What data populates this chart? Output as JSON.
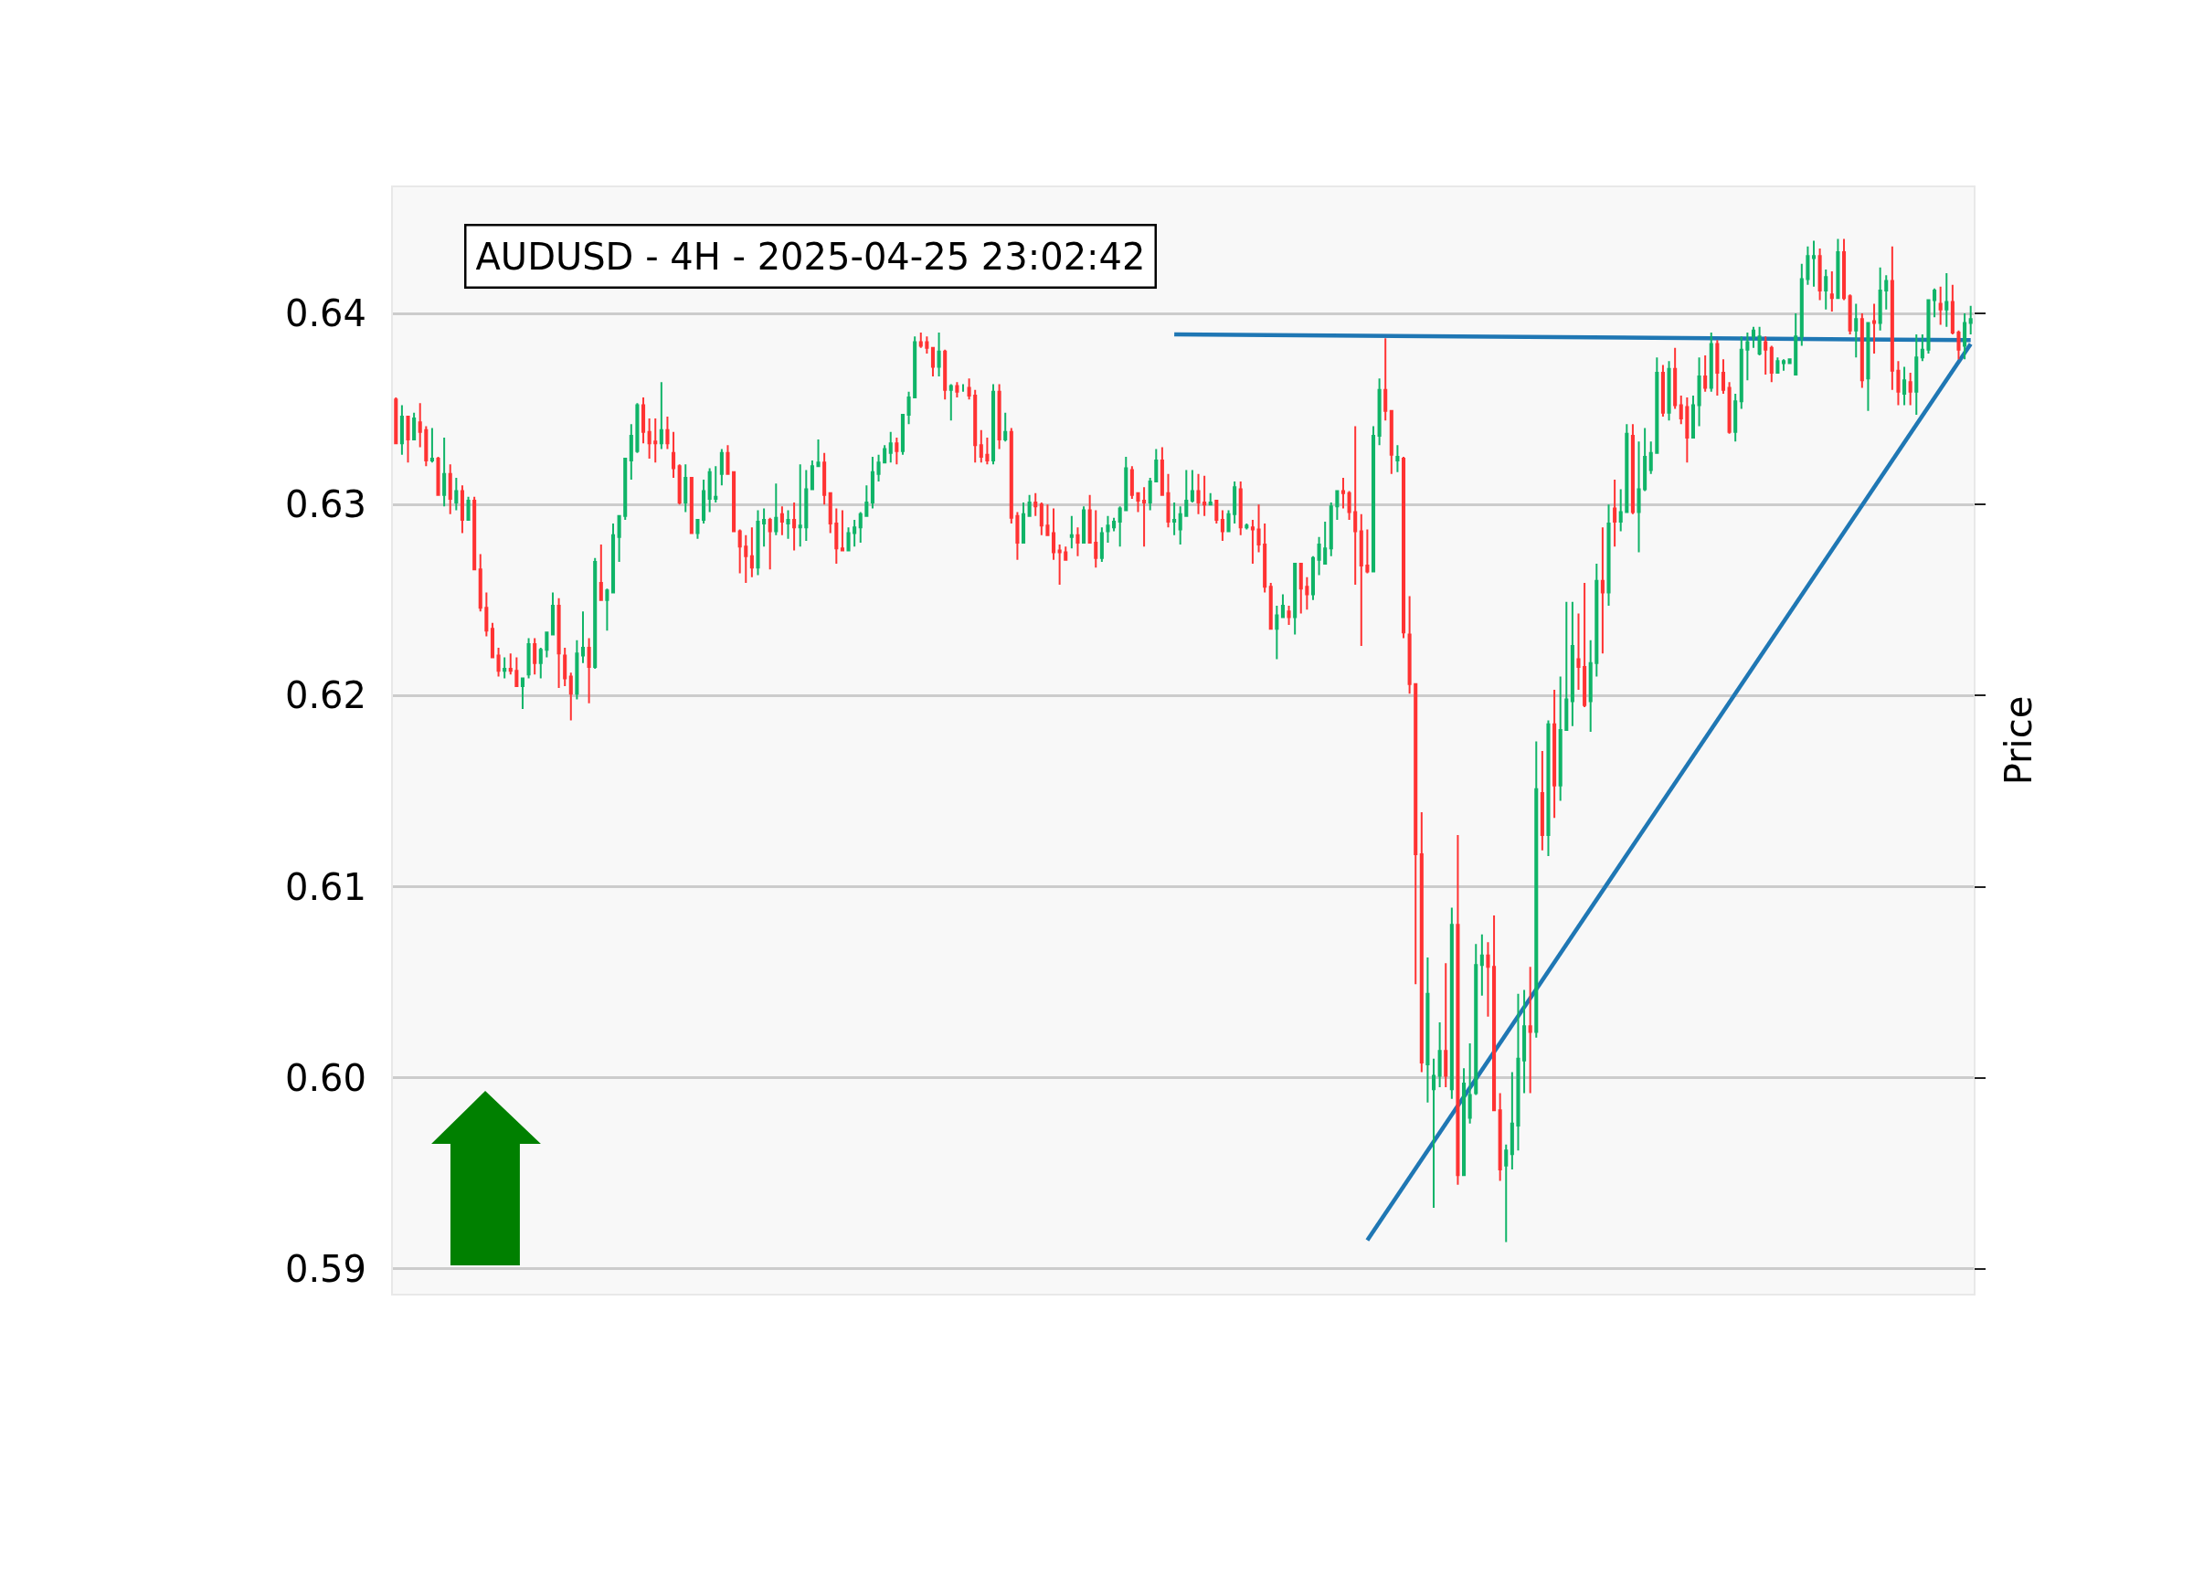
{
  "chart_data": {
    "type": "candlestick",
    "title": "AUDUSD - 4H - 2025-04-25 23:02:42",
    "ylabel": "Price",
    "categories": [
      null,
      null,
      null,
      null,
      null,
      null,
      null,
      null,
      null,
      null,
      null,
      null,
      null,
      null,
      null,
      null,
      null,
      null,
      null,
      null,
      null,
      null,
      null,
      null,
      null,
      null,
      null,
      null,
      null,
      null,
      null,
      null,
      null,
      null,
      null,
      null,
      null,
      null,
      null,
      null,
      null,
      null,
      null,
      null,
      null,
      null,
      null,
      null,
      null,
      null,
      null,
      null,
      null,
      null,
      null,
      null,
      null,
      null,
      null,
      null,
      null,
      null,
      null,
      null,
      null,
      null,
      null,
      null,
      null,
      null,
      null,
      null,
      null,
      null,
      null,
      null,
      null,
      null,
      null,
      null,
      null,
      null,
      null,
      null,
      null,
      null,
      null,
      null,
      null,
      null,
      null,
      null,
      null,
      null,
      null,
      null,
      null,
      null,
      null,
      null,
      null,
      null,
      null,
      null,
      null,
      null,
      null,
      null,
      null,
      null,
      null,
      null,
      null,
      null,
      null,
      null,
      null,
      null,
      null,
      null,
      null,
      null,
      null,
      null,
      null,
      null,
      null,
      null,
      null,
      null,
      null,
      null,
      null,
      null,
      null,
      null,
      null,
      null,
      null,
      null,
      null,
      null,
      null,
      null,
      null,
      null,
      null,
      null,
      null,
      null,
      null,
      null,
      null,
      null,
      null,
      null,
      null,
      null,
      null,
      null,
      null,
      null,
      null,
      null,
      null,
      null,
      null,
      null,
      null,
      null,
      null,
      null,
      null,
      null,
      null,
      null,
      null,
      null,
      null,
      null,
      null,
      null,
      null,
      null,
      null,
      null,
      null,
      null,
      null,
      null,
      null,
      null,
      null,
      null,
      null,
      null,
      null,
      null,
      null,
      null,
      null,
      null,
      null,
      null,
      null,
      null,
      null,
      null,
      null,
      null,
      null,
      null,
      null,
      null,
      null,
      null,
      null,
      null,
      null,
      null,
      null,
      null,
      null,
      null,
      null,
      null,
      null,
      null,
      null,
      null,
      null,
      null,
      null,
      null,
      null,
      null,
      null,
      null,
      null,
      null,
      null,
      null,
      null,
      null,
      null,
      null,
      null,
      null,
      null,
      null,
      null,
      null,
      null,
      null,
      null,
      null,
      null,
      null,
      null,
      null,
      null,
      null
    ],
    "ohlc": [
      [
        0.6355,
        0.6356,
        0.6332,
        0.6332
      ],
      [
        0.6332,
        0.6352,
        0.6326,
        0.6346
      ],
      [
        0.6346,
        0.6346,
        0.6322,
        0.6334
      ],
      [
        0.6334,
        0.6348,
        0.6334,
        0.6345
      ],
      [
        0.6343,
        0.6353,
        0.633,
        0.6338
      ],
      [
        0.6339,
        0.6341,
        0.632,
        0.6323
      ],
      [
        0.6323,
        0.634,
        0.6322,
        0.6324
      ],
      [
        0.6324,
        0.6325,
        0.6305,
        0.6305
      ],
      [
        0.6305,
        0.6335,
        0.6299,
        0.6316
      ],
      [
        0.6316,
        0.6321,
        0.6295,
        0.6303
      ],
      [
        0.6301,
        0.6314,
        0.6297,
        0.6307
      ],
      [
        0.6307,
        0.631,
        0.6285,
        0.6292
      ],
      [
        0.6292,
        0.6304,
        0.6292,
        0.6302
      ],
      [
        0.6302,
        0.6304,
        0.6266,
        0.6266
      ],
      [
        0.6266,
        0.6274,
        0.6244,
        0.6246
      ],
      [
        0.6246,
        0.6254,
        0.6231,
        0.6234
      ],
      [
        0.6235,
        0.6238,
        0.622,
        0.622
      ],
      [
        0.6221,
        0.6225,
        0.621,
        0.6213
      ],
      [
        0.6213,
        0.622,
        0.6209,
        0.6214
      ],
      [
        0.6214,
        0.6222,
        0.6211,
        0.6213
      ],
      [
        0.6213,
        0.622,
        0.6205,
        0.6205
      ],
      [
        0.6205,
        0.6209,
        0.6193,
        0.6209
      ],
      [
        0.6211,
        0.623,
        0.6209,
        0.6227
      ],
      [
        0.6227,
        0.623,
        0.6211,
        0.6217
      ],
      [
        0.6217,
        0.6225,
        0.6209,
        0.6224
      ],
      [
        0.6224,
        0.6233,
        0.622,
        0.6233
      ],
      [
        0.6232,
        0.6254,
        0.6232,
        0.6247
      ],
      [
        0.6247,
        0.6251,
        0.6204,
        0.6222
      ],
      [
        0.6221,
        0.6225,
        0.6205,
        0.6209
      ],
      [
        0.621,
        0.6212,
        0.6187,
        0.6201
      ],
      [
        0.6201,
        0.6229,
        0.6198,
        0.6222
      ],
      [
        0.6221,
        0.6244,
        0.6217,
        0.6225
      ],
      [
        0.6225,
        0.623,
        0.6196,
        0.6215
      ],
      [
        0.6215,
        0.6272,
        0.6214,
        0.627
      ],
      [
        0.6259,
        0.6279,
        0.625,
        0.625
      ],
      [
        0.625,
        0.6256,
        0.6234,
        0.6255
      ],
      [
        0.6254,
        0.629,
        0.6254,
        0.6284
      ],
      [
        0.6283,
        0.6294,
        0.627,
        0.6294
      ],
      [
        0.6294,
        0.6324,
        0.6292,
        0.6324
      ],
      [
        0.6323,
        0.6342,
        0.6313,
        0.6336
      ],
      [
        0.6328,
        0.6353,
        0.6327,
        0.6352
      ],
      [
        0.6352,
        0.6356,
        0.6332,
        0.6338
      ],
      [
        0.6338,
        0.6345,
        0.6324,
        0.6332
      ],
      [
        0.6333,
        0.6345,
        0.6322,
        0.6332
      ],
      [
        0.6332,
        0.6364,
        0.6329,
        0.6339
      ],
      [
        0.6339,
        0.6346,
        0.6329,
        0.6332
      ],
      [
        0.6327,
        0.6338,
        0.6314,
        0.6319
      ],
      [
        0.632,
        0.6321,
        0.63,
        0.6301
      ],
      [
        0.6301,
        0.6321,
        0.6296,
        0.6314
      ],
      [
        0.6314,
        0.6314,
        0.6285,
        0.6285
      ],
      [
        0.6285,
        0.6292,
        0.6282,
        0.6292
      ],
      [
        0.6292,
        0.6313,
        0.629,
        0.6307
      ],
      [
        0.6303,
        0.6319,
        0.6296,
        0.6317
      ],
      [
        0.6303,
        0.632,
        0.6301,
        0.6304
      ],
      [
        0.6316,
        0.6329,
        0.631,
        0.6327
      ],
      [
        0.6327,
        0.6331,
        0.6316,
        0.6316
      ],
      [
        0.6317,
        0.6317,
        0.6286,
        0.6286
      ],
      [
        0.6286,
        0.6287,
        0.6264,
        0.6278
      ],
      [
        0.6278,
        0.6284,
        0.6259,
        0.6273
      ],
      [
        0.6273,
        0.6288,
        0.6262,
        0.6267
      ],
      [
        0.6267,
        0.6297,
        0.6263,
        0.6291
      ],
      [
        0.629,
        0.6298,
        0.6278,
        0.6292
      ],
      [
        0.6292,
        0.6293,
        0.6266,
        0.6286
      ],
      [
        0.6286,
        0.6311,
        0.6284,
        0.6293
      ],
      [
        0.6295,
        0.6299,
        0.6284,
        0.6291
      ],
      [
        0.629,
        0.6297,
        0.6282,
        0.6292
      ],
      [
        0.6292,
        0.6301,
        0.6276,
        0.6288
      ],
      [
        0.6288,
        0.6321,
        0.6278,
        0.6289
      ],
      [
        0.6288,
        0.6318,
        0.6281,
        0.6308
      ],
      [
        0.6308,
        0.6323,
        0.6308,
        0.632
      ],
      [
        0.632,
        0.6334,
        0.632,
        0.6322
      ],
      [
        0.6322,
        0.6327,
        0.63,
        0.6305
      ],
      [
        0.6306,
        0.6306,
        0.6285,
        0.629
      ],
      [
        0.629,
        0.6298,
        0.6269,
        0.6277
      ],
      [
        0.6277,
        0.6297,
        0.6276,
        0.6276
      ],
      [
        0.6276,
        0.6288,
        0.6276,
        0.6285
      ],
      [
        0.6285,
        0.6292,
        0.6278,
        0.6288
      ],
      [
        0.6288,
        0.6296,
        0.628,
        0.6295
      ],
      [
        0.6294,
        0.631,
        0.6294,
        0.6301
      ],
      [
        0.6301,
        0.6325,
        0.6298,
        0.6317
      ],
      [
        0.6316,
        0.6326,
        0.6312,
        0.6322
      ],
      [
        0.6322,
        0.6331,
        0.6322,
        0.6329
      ],
      [
        0.6327,
        0.6338,
        0.6322,
        0.6332
      ],
      [
        0.6332,
        0.6335,
        0.6321,
        0.6328
      ],
      [
        0.6328,
        0.6347,
        0.6326,
        0.6347
      ],
      [
        0.6347,
        0.6359,
        0.6342,
        0.6356
      ],
      [
        0.6356,
        0.6388,
        0.6356,
        0.6385
      ],
      [
        0.6385,
        0.639,
        0.6382,
        0.6383
      ],
      [
        0.6385,
        0.6388,
        0.6379,
        0.6382
      ],
      [
        0.6382,
        0.6382,
        0.6367,
        0.6372
      ],
      [
        0.6372,
        0.639,
        0.6367,
        0.638
      ],
      [
        0.638,
        0.6381,
        0.6355,
        0.636
      ],
      [
        0.636,
        0.6363,
        0.6344,
        0.6362
      ],
      [
        0.6362,
        0.6364,
        0.6356,
        0.6359
      ],
      [
        0.636,
        0.6363,
        0.6359,
        0.636
      ],
      [
        0.6361,
        0.6366,
        0.6355,
        0.6357
      ],
      [
        0.6357,
        0.636,
        0.6322,
        0.6331
      ],
      [
        0.6331,
        0.6339,
        0.6322,
        0.6325
      ],
      [
        0.6326,
        0.6335,
        0.6321,
        0.6323
      ],
      [
        0.6323,
        0.6363,
        0.6321,
        0.6359
      ],
      [
        0.6359,
        0.6363,
        0.6329,
        0.6334
      ],
      [
        0.6334,
        0.6348,
        0.6333,
        0.6338
      ],
      [
        0.6338,
        0.634,
        0.629,
        0.6293
      ],
      [
        0.6294,
        0.6296,
        0.6271,
        0.628
      ],
      [
        0.628,
        0.6301,
        0.628,
        0.6295
      ],
      [
        0.6294,
        0.6305,
        0.6294,
        0.6301
      ],
      [
        0.6301,
        0.6306,
        0.6294,
        0.6299
      ],
      [
        0.63,
        0.6301,
        0.6284,
        0.6289
      ],
      [
        0.6289,
        0.63,
        0.6284,
        0.6284
      ],
      [
        0.6285,
        0.6298,
        0.6271,
        0.6275
      ],
      [
        0.6276,
        0.6279,
        0.6258,
        0.6275
      ],
      [
        0.6275,
        0.6278,
        0.6271,
        0.6271
      ],
      [
        0.6283,
        0.6294,
        0.6277,
        0.6284
      ],
      [
        0.6284,
        0.6288,
        0.6273,
        0.628
      ],
      [
        0.628,
        0.6299,
        0.628,
        0.6297
      ],
      [
        0.6297,
        0.6305,
        0.628,
        0.628
      ],
      [
        0.628,
        0.6297,
        0.6267,
        0.6272
      ],
      [
        0.6272,
        0.6288,
        0.627,
        0.6285
      ],
      [
        0.6286,
        0.6294,
        0.628,
        0.6289
      ],
      [
        0.6288,
        0.6293,
        0.6286,
        0.6291
      ],
      [
        0.6291,
        0.6299,
        0.6278,
        0.6298
      ],
      [
        0.6297,
        0.6325,
        0.6297,
        0.6319
      ],
      [
        0.6318,
        0.632,
        0.6303,
        0.6305
      ],
      [
        0.6306,
        0.6306,
        0.6296,
        0.6302
      ],
      [
        0.6302,
        0.6309,
        0.6278,
        0.6301
      ],
      [
        0.6301,
        0.6314,
        0.6297,
        0.6312
      ],
      [
        0.6312,
        0.6329,
        0.6312,
        0.6323
      ],
      [
        0.6323,
        0.633,
        0.6305,
        0.6305
      ],
      [
        0.6306,
        0.6316,
        0.6288,
        0.6291
      ],
      [
        0.6291,
        0.6301,
        0.6284,
        0.6292
      ],
      [
        0.6287,
        0.6299,
        0.6279,
        0.6295
      ],
      [
        0.6294,
        0.6318,
        0.6294,
        0.6302
      ],
      [
        0.6302,
        0.6318,
        0.6301,
        0.6307
      ],
      [
        0.6307,
        0.6316,
        0.6295,
        0.6301
      ],
      [
        0.6301,
        0.6315,
        0.6294,
        0.63
      ],
      [
        0.63,
        0.6306,
        0.63,
        0.6301
      ],
      [
        0.6302,
        0.6302,
        0.629,
        0.6292
      ],
      [
        0.6292,
        0.6297,
        0.6281,
        0.6286
      ],
      [
        0.6286,
        0.6297,
        0.6286,
        0.6295
      ],
      [
        0.6295,
        0.6312,
        0.629,
        0.6309
      ],
      [
        0.6308,
        0.6312,
        0.6284,
        0.6288
      ],
      [
        0.6288,
        0.629,
        0.6287,
        0.6289
      ],
      [
        0.6288,
        0.6292,
        0.6269,
        0.6287
      ],
      [
        0.6287,
        0.63,
        0.6275,
        0.6279
      ],
      [
        0.6279,
        0.629,
        0.6254,
        0.6257
      ],
      [
        0.6257,
        0.6259,
        0.6235,
        0.6235
      ],
      [
        0.6235,
        0.6247,
        0.6219,
        0.6242
      ],
      [
        0.6241,
        0.6253,
        0.6241,
        0.6247
      ],
      [
        0.6244,
        0.6247,
        0.6237,
        0.6241
      ],
      [
        0.6241,
        0.6269,
        0.6232,
        0.6269
      ],
      [
        0.6269,
        0.6269,
        0.6243,
        0.6256
      ],
      [
        0.6257,
        0.6262,
        0.6245,
        0.6253
      ],
      [
        0.6253,
        0.6273,
        0.625,
        0.6272
      ],
      [
        0.6271,
        0.6283,
        0.6263,
        0.6279
      ],
      [
        0.6269,
        0.6291,
        0.6269,
        0.6277
      ],
      [
        0.6277,
        0.6301,
        0.6273,
        0.6299
      ],
      [
        0.6299,
        0.6307,
        0.6292,
        0.6307
      ],
      [
        0.6307,
        0.6314,
        0.6298,
        0.6306
      ],
      [
        0.6306,
        0.6307,
        0.6292,
        0.6296
      ],
      [
        0.6296,
        0.6341,
        0.6258,
        0.6286
      ],
      [
        0.6286,
        0.6295,
        0.6226,
        0.6268
      ],
      [
        0.6268,
        0.6287,
        0.6264,
        0.6265
      ],
      [
        0.6265,
        0.6341,
        0.6265,
        0.6336
      ],
      [
        0.6336,
        0.6366,
        0.6331,
        0.636
      ],
      [
        0.636,
        0.6387,
        0.6344,
        0.6349
      ],
      [
        0.6349,
        0.6349,
        0.6316,
        0.6326
      ],
      [
        0.6323,
        0.6331,
        0.6317,
        0.6325
      ],
      [
        0.6324,
        0.6325,
        0.623,
        0.6233
      ],
      [
        0.6232,
        0.6252,
        0.6201,
        0.6206
      ],
      [
        0.6206,
        0.6206,
        0.6049,
        0.6117
      ],
      [
        0.6117,
        0.6139,
        0.6003,
        0.6008
      ],
      [
        0.6007,
        0.6063,
        0.5987,
        0.6044
      ],
      [
        0.5994,
        0.601,
        0.5932,
        0.6001
      ],
      [
        0.6001,
        0.6029,
        0.5995,
        0.6014
      ],
      [
        0.6014,
        0.606,
        0.5995,
        0.6001
      ],
      [
        0.5994,
        0.6089,
        0.5989,
        0.608
      ],
      [
        0.608,
        0.6127,
        0.5944,
        0.5949
      ],
      [
        0.5949,
        0.6005,
        0.5949,
        0.5997
      ],
      [
        0.5979,
        0.6018,
        0.5976,
        0.5991
      ],
      [
        0.5992,
        0.607,
        0.5991,
        0.6059
      ],
      [
        0.6059,
        0.6075,
        0.6043,
        0.6064
      ],
      [
        0.6064,
        0.6071,
        0.6032,
        0.6058
      ],
      [
        0.6058,
        0.6085,
        0.5983,
        0.5983
      ],
      [
        0.5983,
        0.5992,
        0.5946,
        0.5952
      ],
      [
        0.5954,
        0.5965,
        0.5914,
        0.5962
      ],
      [
        0.596,
        0.6003,
        0.5952,
        0.5976
      ],
      [
        0.5975,
        0.6044,
        0.5962,
        0.601
      ],
      [
        0.6009,
        0.6046,
        0.5992,
        0.6027
      ],
      [
        0.6027,
        0.6058,
        0.5992,
        0.6024
      ],
      [
        0.6024,
        0.6176,
        0.6021,
        0.6151
      ],
      [
        0.6149,
        0.6171,
        0.6119,
        0.6127
      ],
      [
        0.6127,
        0.6187,
        0.6116,
        0.6185
      ],
      [
        0.6185,
        0.6203,
        0.6136,
        0.6153
      ],
      [
        0.6153,
        0.621,
        0.6145,
        0.6182
      ],
      [
        0.6182,
        0.6249,
        0.6182,
        0.6198
      ],
      [
        0.6197,
        0.6249,
        0.6184,
        0.6226
      ],
      [
        0.6219,
        0.6243,
        0.6203,
        0.6215
      ],
      [
        0.6215,
        0.6259,
        0.6194,
        0.6195
      ],
      [
        0.6197,
        0.6229,
        0.6181,
        0.6217
      ],
      [
        0.6217,
        0.6269,
        0.621,
        0.626
      ],
      [
        0.626,
        0.6288,
        0.6222,
        0.6254
      ],
      [
        0.6254,
        0.63,
        0.6247,
        0.629
      ],
      [
        0.6298,
        0.6313,
        0.6278,
        0.6291
      ],
      [
        0.6291,
        0.6308,
        0.6286,
        0.6296
      ],
      [
        0.6296,
        0.6342,
        0.6296,
        0.6337
      ],
      [
        0.6336,
        0.6342,
        0.6295,
        0.6296
      ],
      [
        0.6296,
        0.6333,
        0.6275,
        0.6308
      ],
      [
        0.6308,
        0.634,
        0.6307,
        0.6325
      ],
      [
        0.6318,
        0.6333,
        0.6316,
        0.6327
      ],
      [
        0.6327,
        0.6377,
        0.6327,
        0.6369
      ],
      [
        0.6369,
        0.6373,
        0.6346,
        0.6348
      ],
      [
        0.6348,
        0.6375,
        0.6344,
        0.6371
      ],
      [
        0.6371,
        0.6382,
        0.635,
        0.6352
      ],
      [
        0.6352,
        0.6357,
        0.6342,
        0.6345
      ],
      [
        0.6351,
        0.6356,
        0.6322,
        0.6335
      ],
      [
        0.6335,
        0.6357,
        0.6335,
        0.6352
      ],
      [
        0.6352,
        0.6377,
        0.6341,
        0.6367
      ],
      [
        0.6367,
        0.6378,
        0.6359,
        0.6361
      ],
      [
        0.6361,
        0.639,
        0.6359,
        0.6384
      ],
      [
        0.6384,
        0.6386,
        0.6357,
        0.6369
      ],
      [
        0.6369,
        0.6376,
        0.6358,
        0.636
      ],
      [
        0.6361,
        0.6364,
        0.6337,
        0.6338
      ],
      [
        0.6338,
        0.6358,
        0.6333,
        0.6354
      ],
      [
        0.6354,
        0.6388,
        0.635,
        0.6381
      ],
      [
        0.6381,
        0.639,
        0.6365,
        0.6385
      ],
      [
        0.6388,
        0.6393,
        0.6382,
        0.6391
      ],
      [
        0.6379,
        0.6393,
        0.6378,
        0.6388
      ],
      [
        0.6385,
        0.6388,
        0.6368,
        0.6381
      ],
      [
        0.6382,
        0.6383,
        0.6364,
        0.6369
      ],
      [
        0.6369,
        0.6377,
        0.6369,
        0.6375
      ],
      [
        0.6374,
        0.6376,
        0.637,
        0.6375
      ],
      [
        0.6374,
        0.6376,
        0.6374,
        0.6376
      ],
      [
        0.6368,
        0.64,
        0.6368,
        0.6388
      ],
      [
        0.6388,
        0.6426,
        0.6383,
        0.6418
      ],
      [
        0.6418,
        0.6435,
        0.6415,
        0.643
      ],
      [
        0.6429,
        0.6438,
        0.6414,
        0.643
      ],
      [
        0.643,
        0.6434,
        0.6407,
        0.6412
      ],
      [
        0.6412,
        0.6423,
        0.6402,
        0.6419
      ],
      [
        0.641,
        0.6422,
        0.6401,
        0.6408
      ],
      [
        0.6408,
        0.6439,
        0.6408,
        0.6432
      ],
      [
        0.6432,
        0.6439,
        0.6407,
        0.6408
      ],
      [
        0.6409,
        0.641,
        0.6389,
        0.6391
      ],
      [
        0.6391,
        0.6405,
        0.6377,
        0.6397
      ],
      [
        0.6397,
        0.64,
        0.6361,
        0.6365
      ],
      [
        0.6366,
        0.6395,
        0.6349,
        0.6395
      ],
      [
        0.6396,
        0.6405,
        0.6379,
        0.6395
      ],
      [
        0.6395,
        0.6424,
        0.6391,
        0.6412
      ],
      [
        0.6412,
        0.642,
        0.6402,
        0.6417
      ],
      [
        0.6417,
        0.6435,
        0.636,
        0.637
      ],
      [
        0.637,
        0.6375,
        0.6352,
        0.6359
      ],
      [
        0.6358,
        0.6372,
        0.6352,
        0.6365
      ],
      [
        0.6364,
        0.6369,
        0.6352,
        0.6359
      ],
      [
        0.6359,
        0.6389,
        0.6347,
        0.6377
      ],
      [
        0.6377,
        0.6389,
        0.6375,
        0.6381
      ],
      [
        0.6381,
        0.6407,
        0.6379,
        0.6407
      ],
      [
        0.6407,
        0.6413,
        0.6398,
        0.6412
      ],
      [
        0.6405,
        0.6414,
        0.6394,
        0.6402
      ],
      [
        0.6402,
        0.6421,
        0.6393,
        0.6406
      ],
      [
        0.6406,
        0.6415,
        0.6389,
        0.639
      ],
      [
        0.639,
        0.6391,
        0.6376,
        0.6381
      ],
      [
        0.6383,
        0.64,
        0.6376,
        0.6395
      ],
      [
        0.6395,
        0.6404,
        0.6389,
        0.6397
      ]
    ],
    "colors": [
      "#ff3333",
      "#10b468",
      "#ff3333",
      "#10b468",
      "#ff3333",
      "#ff3333",
      "#10b468",
      "#ff3333",
      "#10b468",
      "#ff3333",
      "#10b468",
      "#ff3333",
      "#10b468",
      "#ff3333",
      "#ff3333",
      "#ff3333",
      "#ff3333",
      "#ff3333",
      "#10b468",
      "#ff3333",
      "#ff3333",
      "#10b468",
      "#10b468",
      "#ff3333",
      "#10b468",
      "#10b468",
      "#10b468",
      "#ff3333",
      "#ff3333",
      "#ff3333",
      "#10b468",
      "#10b468",
      "#ff3333",
      "#10b468",
      "#ff3333",
      "#10b468",
      "#10b468",
      "#10b468",
      "#10b468",
      "#10b468",
      "#10b468",
      "#ff3333",
      "#ff3333",
      "#ff3333",
      "#10b468",
      "#ff3333",
      "#ff3333",
      "#ff3333",
      "#10b468",
      "#ff3333",
      "#10b468",
      "#10b468",
      "#10b468",
      "#10b468",
      "#10b468",
      "#ff3333",
      "#ff3333",
      "#ff3333",
      "#ff3333",
      "#ff3333",
      "#10b468",
      "#10b468",
      "#ff3333",
      "#10b468",
      "#ff3333",
      "#10b468",
      "#ff3333",
      "#10b468",
      "#10b468",
      "#10b468",
      "#10b468",
      "#ff3333",
      "#ff3333",
      "#ff3333",
      "#ff3333",
      "#10b468",
      "#10b468",
      "#10b468",
      "#10b468",
      "#10b468",
      "#10b468",
      "#10b468",
      "#10b468",
      "#ff3333",
      "#10b468",
      "#10b468",
      "#10b468",
      "#ff3333",
      "#ff3333",
      "#ff3333",
      "#10b468",
      "#ff3333",
      "#10b468",
      "#ff3333",
      "#10b468",
      "#ff3333",
      "#ff3333",
      "#ff3333",
      "#ff3333",
      "#10b468",
      "#ff3333",
      "#10b468",
      "#ff3333",
      "#ff3333",
      "#10b468",
      "#10b468",
      "#ff3333",
      "#ff3333",
      "#ff3333",
      "#ff3333",
      "#ff3333",
      "#ff3333",
      "#10b468",
      "#ff3333",
      "#10b468",
      "#ff3333",
      "#ff3333",
      "#10b468",
      "#10b468",
      "#10b468",
      "#10b468",
      "#10b468",
      "#ff3333",
      "#ff3333",
      "#ff3333",
      "#10b468",
      "#10b468",
      "#ff3333",
      "#ff3333",
      "#10b468",
      "#10b468",
      "#10b468",
      "#10b468",
      "#ff3333",
      "#ff3333",
      "#10b468",
      "#ff3333",
      "#ff3333",
      "#10b468",
      "#10b468",
      "#ff3333",
      "#10b468",
      "#ff3333",
      "#ff3333",
      "#ff3333",
      "#ff3333",
      "#10b468",
      "#10b468",
      "#ff3333",
      "#10b468",
      "#ff3333",
      "#ff3333",
      "#10b468",
      "#10b468",
      "#10b468",
      "#10b468",
      "#10b468",
      "#ff3333",
      "#ff3333",
      "#ff3333",
      "#ff3333",
      "#ff3333",
      "#10b468",
      "#10b468",
      "#ff3333",
      "#ff3333",
      "#10b468",
      "#ff3333",
      "#ff3333",
      "#ff3333",
      "#ff3333",
      "#10b468",
      "#10b468",
      "#10b468",
      "#ff3333",
      "#10b468",
      "#ff3333",
      "#10b468",
      "#10b468",
      "#10b468",
      "#10b468",
      "#ff3333",
      "#ff3333",
      "#ff3333",
      "#10b468",
      "#10b468",
      "#10b468",
      "#10b468",
      "#ff3333",
      "#10b468",
      "#ff3333",
      "#10b468",
      "#ff3333",
      "#10b468",
      "#10b468",
      "#10b468",
      "#ff3333",
      "#ff3333",
      "#10b468",
      "#10b468",
      "#ff3333",
      "#10b468",
      "#ff3333",
      "#10b468",
      "#10b468",
      "#ff3333",
      "#10b468",
      "#10b468",
      "#10b468",
      "#10b468",
      "#ff3333",
      "#10b468",
      "#ff3333",
      "#ff3333",
      "#ff3333",
      "#10b468",
      "#10b468",
      "#ff3333",
      "#10b468",
      "#ff3333",
      "#ff3333",
      "#ff3333",
      "#10b468",
      "#10b468",
      "#10b468",
      "#10b468",
      "#10b468",
      "#ff3333",
      "#ff3333",
      "#10b468",
      "#10b468",
      "#10b468",
      "#10b468",
      "#10b468",
      "#10b468",
      "#10b468",
      "#ff3333",
      "#10b468",
      "#ff3333",
      "#10b468",
      "#ff3333",
      "#ff3333",
      "#10b468",
      "#ff3333",
      "#10b468",
      "#ff3333",
      "#10b468",
      "#10b468",
      "#ff3333",
      "#ff3333",
      "#10b468",
      "#ff3333",
      "#10b468",
      "#10b468",
      "#10b468",
      "#10b468",
      "#ff3333",
      "#10b468",
      "#ff3333",
      "#ff3333",
      "#10b468",
      "#10b468"
    ],
    "series": [
      {
        "type": "line",
        "color": "#1f77b4",
        "values": [
          null,
          null,
          null,
          null,
          null,
          null,
          null,
          null,
          null,
          null,
          null,
          null,
          null,
          null,
          null,
          null,
          null,
          null,
          null,
          null,
          null,
          null,
          null,
          null,
          null,
          null,
          null,
          null,
          null,
          null,
          null,
          null,
          null,
          null,
          null,
          null,
          null,
          null,
          null,
          null,
          null,
          null,
          null,
          null,
          null,
          null,
          null,
          null,
          null,
          null,
          null,
          null,
          null,
          null,
          null,
          null,
          null,
          null,
          null,
          null,
          null,
          null,
          null,
          null,
          null,
          null,
          null,
          null,
          null,
          null,
          null,
          null,
          null,
          null,
          null,
          null,
          null,
          null,
          null,
          null,
          null,
          null,
          null,
          null,
          null,
          null,
          null,
          null,
          null,
          null,
          null,
          null,
          null,
          null,
          null,
          null,
          null,
          null,
          null,
          null,
          null,
          null,
          null,
          null,
          null,
          null,
          null,
          null,
          null,
          null,
          null,
          null,
          null,
          null,
          null,
          null,
          null,
          null,
          null,
          null,
          null,
          null,
          null,
          null,
          null,
          null,
          null,
          null,
          null,
          0.6389,
          null,
          null,
          null,
          null,
          null,
          null,
          null,
          null,
          null,
          null,
          null,
          null,
          null,
          null,
          null,
          null,
          null,
          null,
          null,
          null,
          null,
          null,
          null,
          null,
          null,
          null,
          null,
          null,
          null,
          null,
          null,
          null,
          null,
          null,
          null,
          null,
          null,
          null,
          null,
          null,
          null,
          null,
          null,
          null,
          null,
          null,
          null,
          null,
          null,
          null,
          null,
          null,
          null,
          null,
          null,
          null,
          null,
          null,
          null,
          null,
          null,
          null,
          null,
          null,
          null,
          null,
          null,
          null,
          null,
          null,
          null,
          null,
          null,
          null,
          null,
          null,
          null,
          null,
          null,
          null,
          null,
          null,
          null,
          null,
          null,
          null,
          null,
          null,
          null,
          null,
          null,
          null,
          null,
          null,
          null,
          null,
          null,
          null,
          null,
          null,
          null,
          null,
          null,
          null,
          null,
          null,
          null,
          null,
          null,
          null,
          null,
          null,
          null,
          null,
          null,
          null,
          null,
          null,
          null,
          null,
          null,
          null,
          null,
          null,
          null,
          null,
          null,
          null,
          null,
          null,
          null,
          0.6386
        ]
      },
      {
        "type": "line",
        "color": "#1f77b4",
        "values": [
          null,
          null,
          null,
          null,
          null,
          null,
          null,
          null,
          null,
          null,
          null,
          null,
          null,
          null,
          null,
          null,
          null,
          null,
          null,
          null,
          null,
          null,
          null,
          null,
          null,
          null,
          null,
          null,
          null,
          null,
          null,
          null,
          null,
          null,
          null,
          null,
          null,
          null,
          null,
          null,
          null,
          null,
          null,
          null,
          null,
          null,
          null,
          null,
          null,
          null,
          null,
          null,
          null,
          null,
          null,
          null,
          null,
          null,
          null,
          null,
          null,
          null,
          null,
          null,
          null,
          null,
          null,
          null,
          null,
          null,
          null,
          null,
          null,
          null,
          null,
          null,
          null,
          null,
          null,
          null,
          null,
          null,
          null,
          null,
          null,
          null,
          null,
          null,
          null,
          null,
          null,
          null,
          null,
          null,
          null,
          null,
          null,
          null,
          null,
          null,
          null,
          null,
          null,
          null,
          null,
          null,
          null,
          null,
          null,
          null,
          null,
          null,
          null,
          null,
          null,
          null,
          null,
          null,
          null,
          null,
          null,
          null,
          null,
          null,
          null,
          null,
          null,
          null,
          null,
          null,
          null,
          null,
          null,
          null,
          null,
          null,
          null,
          null,
          null,
          null,
          null,
          null,
          null,
          null,
          null,
          null,
          null,
          null,
          null,
          null,
          null,
          null,
          null,
          null,
          null,
          null,
          null,
          null,
          null,
          null,
          null,
          0.5915,
          null,
          null,
          null,
          null,
          null,
          null,
          null,
          null,
          null,
          null,
          null,
          null,
          null,
          null,
          null,
          null,
          null,
          null,
          null,
          null,
          null,
          null,
          null,
          null,
          null,
          null,
          null,
          null,
          null,
          null,
          null,
          null,
          null,
          null,
          null,
          null,
          null,
          null,
          null,
          null,
          null,
          null,
          null,
          null,
          null,
          null,
          null,
          null,
          null,
          null,
          null,
          null,
          null,
          null,
          null,
          null,
          null,
          null,
          null,
          null,
          null,
          null,
          null,
          null,
          null,
          null,
          null,
          null,
          null,
          null,
          null,
          null,
          null,
          null,
          null,
          null,
          null,
          null,
          null,
          null,
          null,
          null,
          null,
          null,
          null,
          null,
          null,
          null,
          null,
          null,
          null,
          null,
          null,
          null,
          null,
          null,
          null,
          null,
          null,
          0.6384
        ]
      }
    ],
    "ylim": [
      0.5887,
      0.6466
    ],
    "yticks": [
      0.59,
      {
        "value": 0.6,
        "label": "0.60"
      },
      0.61,
      0.62,
      0.63,
      0.64
    ],
    "grid": "y",
    "tick_labels": "y"
  }
}
